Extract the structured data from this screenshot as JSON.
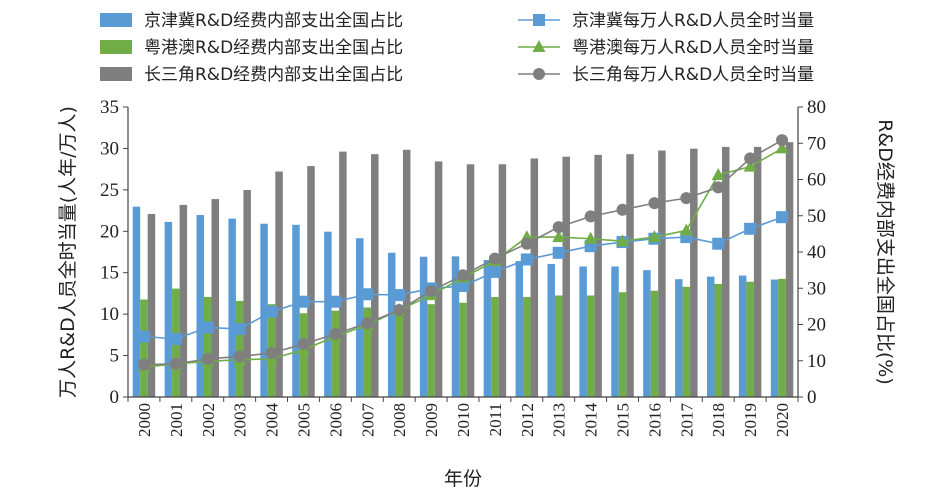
{
  "chart_data": {
    "type": "bar",
    "title": "",
    "xlabel": "年份",
    "ylabel_left": "万人R&D人员全时当量(人年/万人)",
    "ylabel_right": "R&D经费内部支出全国占比(%)",
    "categories": [
      "2000",
      "2001",
      "2002",
      "2003",
      "2004",
      "2005",
      "2006",
      "2007",
      "2008",
      "2009",
      "2010",
      "2011",
      "2012",
      "2013",
      "2014",
      "2015",
      "2016",
      "2017",
      "2018",
      "2019",
      "2020"
    ],
    "ylim_left": [
      0,
      35
    ],
    "yticks_left": [
      0,
      5,
      10,
      15,
      20,
      25,
      30,
      35
    ],
    "ylim_right": [
      0,
      80
    ],
    "yticks_right": [
      0,
      10,
      20,
      30,
      40,
      50,
      60,
      70,
      80
    ],
    "legend_position": "top",
    "bar_series": [
      {
        "name": "京津冀R&D经费内部支出全国占比",
        "axis": "right",
        "color": "#5b9bd5",
        "values": [
          52.5,
          48.3,
          50.2,
          49.2,
          47.8,
          47.5,
          45.6,
          43.8,
          39.8,
          38.7,
          38.8,
          37.8,
          37.5,
          36.7,
          36.0,
          36.0,
          35.0,
          32.5,
          33.2,
          33.5,
          32.4
        ]
      },
      {
        "name": "粤港澳R&D经费内部支出全国占比",
        "axis": "right",
        "color": "#70ad47",
        "values": [
          26.9,
          29.9,
          27.6,
          26.5,
          25.6,
          23.1,
          23.8,
          24.7,
          25.0,
          25.6,
          26.0,
          27.6,
          27.6,
          28.0,
          28.0,
          28.9,
          29.3,
          30.4,
          31.2,
          31.8,
          32.6
        ]
      },
      {
        "name": "长三角R&D经费内部支出全国占比",
        "axis": "right",
        "color": "#7f7f7f",
        "values": [
          50.5,
          53.0,
          54.6,
          57.1,
          62.2,
          63.7,
          67.7,
          67.0,
          68.2,
          65.0,
          64.2,
          64.2,
          65.8,
          66.3,
          66.8,
          67.0,
          68.0,
          68.5,
          69.0,
          69.0,
          70.3
        ]
      }
    ],
    "line_series": [
      {
        "name": "京津冀每万人R&D人员全时当量",
        "axis": "left",
        "color": "#5b9bd5",
        "marker": "square",
        "values": [
          7.3,
          7.0,
          8.4,
          8.2,
          10.3,
          11.5,
          11.5,
          12.4,
          12.3,
          13.1,
          13.4,
          15.1,
          16.6,
          17.4,
          18.2,
          18.7,
          19.1,
          19.3,
          18.5,
          20.3,
          21.7
        ]
      },
      {
        "name": "粤港澳每万人R&D人员全时当量",
        "axis": "left",
        "color": "#70ad47",
        "marker": "triangle",
        "values": [
          3.6,
          4.0,
          4.3,
          4.5,
          4.6,
          5.7,
          7.3,
          8.7,
          10.5,
          12.3,
          14.4,
          16.4,
          19.3,
          19.3,
          19.1,
          18.8,
          19.3,
          20.1,
          26.8,
          27.8,
          30.0
        ]
      },
      {
        "name": "长三角每万人R&D人员全时当量",
        "axis": "left",
        "color": "#7f7f7f",
        "marker": "circle",
        "values": [
          3.9,
          4.0,
          4.6,
          4.9,
          5.3,
          6.4,
          7.6,
          8.9,
          10.5,
          12.8,
          14.7,
          16.7,
          18.5,
          20.5,
          21.8,
          22.6,
          23.4,
          24.0,
          25.3,
          28.8,
          31.0
        ]
      }
    ]
  }
}
